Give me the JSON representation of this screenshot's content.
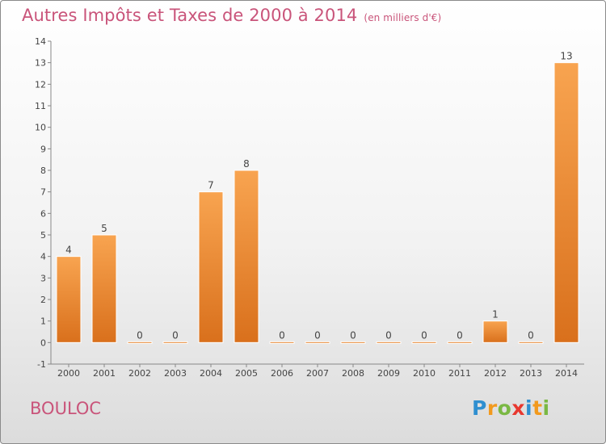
{
  "chart_data": {
    "type": "bar",
    "title": "Autres Impôts et Taxes de 2000 à 2014",
    "unit_note": "(en milliers d'€)",
    "categories": [
      "2000",
      "2001",
      "2002",
      "2003",
      "2004",
      "2005",
      "2006",
      "2007",
      "2008",
      "2009",
      "2010",
      "2011",
      "2012",
      "2013",
      "2014"
    ],
    "values": [
      4,
      5,
      0,
      0,
      7,
      8,
      0,
      0,
      0,
      0,
      0,
      0,
      1,
      0,
      13
    ],
    "y_ticks": [
      "-1",
      "0",
      "1",
      "2",
      "3",
      "4",
      "5",
      "6",
      "7",
      "8",
      "9",
      "10",
      "11",
      "12",
      "13",
      "14"
    ],
    "ylim": [
      -1,
      14
    ],
    "grid": false,
    "bar_color": "#f08a30"
  },
  "footer": {
    "place": "BOULOC",
    "logo_letters": [
      {
        "ch": "P",
        "color": "#2f8fd0"
      },
      {
        "ch": "r",
        "color": "#f29a1e"
      },
      {
        "ch": "o",
        "color": "#7ab843"
      },
      {
        "ch": "x",
        "color": "#e8382f"
      },
      {
        "ch": "i",
        "color": "#2f8fd0"
      },
      {
        "ch": "t",
        "color": "#f29a1e"
      },
      {
        "ch": "i",
        "color": "#7ab843"
      }
    ]
  }
}
